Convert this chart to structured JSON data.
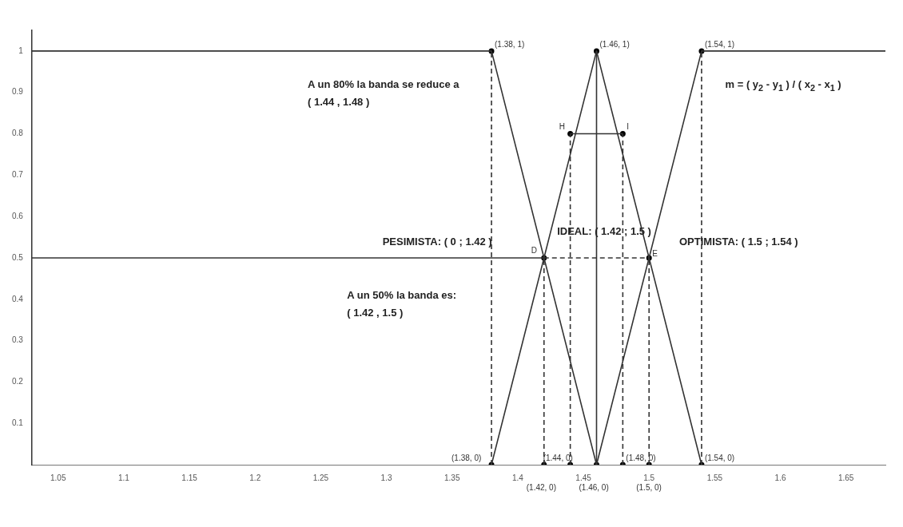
{
  "chart_data": {
    "type": "line",
    "xlim": [
      1.03,
      1.68
    ],
    "ylim": [
      0,
      1.05
    ],
    "xticks": [
      1.05,
      1.1,
      1.15,
      1.2,
      1.25,
      1.3,
      1.35,
      1.4,
      1.45,
      1.5,
      1.55,
      1.6,
      1.65
    ],
    "yticks": [
      0.1,
      0.2,
      0.3,
      0.4,
      0.5,
      0.6,
      0.7,
      0.8,
      0.9,
      1
    ],
    "grid": false,
    "legend": false,
    "series": [
      {
        "color": "#333333",
        "line_style": "solid",
        "x": [
          1.03,
          1.38,
          1.46
        ],
        "values": [
          1,
          1,
          0
        ]
      },
      {
        "color": "#333333",
        "line_style": "solid",
        "x": [
          1.03,
          1.42
        ],
        "values": [
          0.5,
          0.5
        ]
      },
      {
        "color": "#333333",
        "line_style": "solid",
        "x": [
          1.38,
          1.46,
          1.54
        ],
        "values": [
          0,
          1,
          0
        ]
      },
      {
        "color": "#333333",
        "line_style": "solid",
        "x": [
          1.46,
          1.46
        ],
        "values": [
          0,
          1
        ]
      },
      {
        "color": "#333333",
        "line_style": "solid",
        "x": [
          1.46,
          1.54,
          1.68
        ],
        "values": [
          0,
          1,
          1
        ]
      },
      {
        "color": "#333333",
        "line_style": "solid",
        "x": [
          1.44,
          1.48
        ],
        "values": [
          0.8,
          0.8
        ]
      },
      {
        "color": "#333333",
        "line_style": "dashed",
        "x": [
          1.38,
          1.38
        ],
        "values": [
          0,
          1
        ]
      },
      {
        "color": "#333333",
        "line_style": "dashed",
        "x": [
          1.42,
          1.42
        ],
        "values": [
          0,
          0.5
        ]
      },
      {
        "color": "#333333",
        "line_style": "dashed",
        "x": [
          1.44,
          1.44
        ],
        "values": [
          0,
          0.8
        ]
      },
      {
        "color": "#333333",
        "line_style": "dashed",
        "x": [
          1.48,
          1.48
        ],
        "values": [
          0,
          0.8
        ]
      },
      {
        "color": "#333333",
        "line_style": "dashed",
        "x": [
          1.5,
          1.5
        ],
        "values": [
          0,
          0.5
        ]
      },
      {
        "color": "#333333",
        "line_style": "dashed",
        "x": [
          1.54,
          1.54
        ],
        "values": [
          0,
          1
        ]
      },
      {
        "color": "#333333",
        "line_style": "dashed",
        "x": [
          1.42,
          1.5
        ],
        "values": [
          0.5,
          0.5
        ]
      },
      {
        "type": "scatter",
        "color": "#000000",
        "marker": "circle",
        "x": [
          1.38,
          1.46,
          1.54,
          1.44,
          1.48,
          1.42,
          1.5,
          1.38,
          1.42,
          1.44,
          1.46,
          1.48,
          1.5,
          1.54
        ],
        "values": [
          1,
          1,
          1,
          0.8,
          0.8,
          0.5,
          0.5,
          0,
          0,
          0,
          0,
          0,
          0,
          0
        ]
      }
    ],
    "annotations": [
      {
        "text": "(1.38, 1)",
        "x": 1.38,
        "y": 1
      },
      {
        "text": "(1.46, 1)",
        "x": 1.46,
        "y": 1
      },
      {
        "text": "(1.54, 1)",
        "x": 1.54,
        "y": 1
      },
      {
        "text": "H",
        "x": 1.44,
        "y": 0.8
      },
      {
        "text": "I",
        "x": 1.48,
        "y": 0.8
      },
      {
        "text": "D",
        "x": 1.42,
        "y": 0.5
      },
      {
        "text": "E",
        "x": 1.5,
        "y": 0.5
      },
      {
        "text": "(1.38, 0)",
        "x": 1.38,
        "y": 0
      },
      {
        "text": "(1.42, 0)",
        "x": 1.42,
        "y": 0
      },
      {
        "text": "(1.44, 0)",
        "x": 1.44,
        "y": 0
      },
      {
        "text": "(1.46, 0)",
        "x": 1.46,
        "y": 0
      },
      {
        "text": "(1.48, 0)",
        "x": 1.48,
        "y": 0
      },
      {
        "text": "(1.5, 0)",
        "x": 1.5,
        "y": 0
      },
      {
        "text": "(1.54, 0)",
        "x": 1.54,
        "y": 0
      },
      "A un 80% la banda se reduce a\n( 1.44 , 1.48 )",
      "m = ( y$_{2}$ - y$_{1}$ ) / ( x$_{2}$ - x$_{1}$ )",
      "PESIMISTA: ( 0 ; 1.42 )",
      "IDEAL: ( 1.42 ; 1.5 )",
      "OPTIMISTA: ( 1.5 ; 1.54 )",
      "A un 50% la banda es:\n( 1.42 , 1.5 )"
    ]
  }
}
